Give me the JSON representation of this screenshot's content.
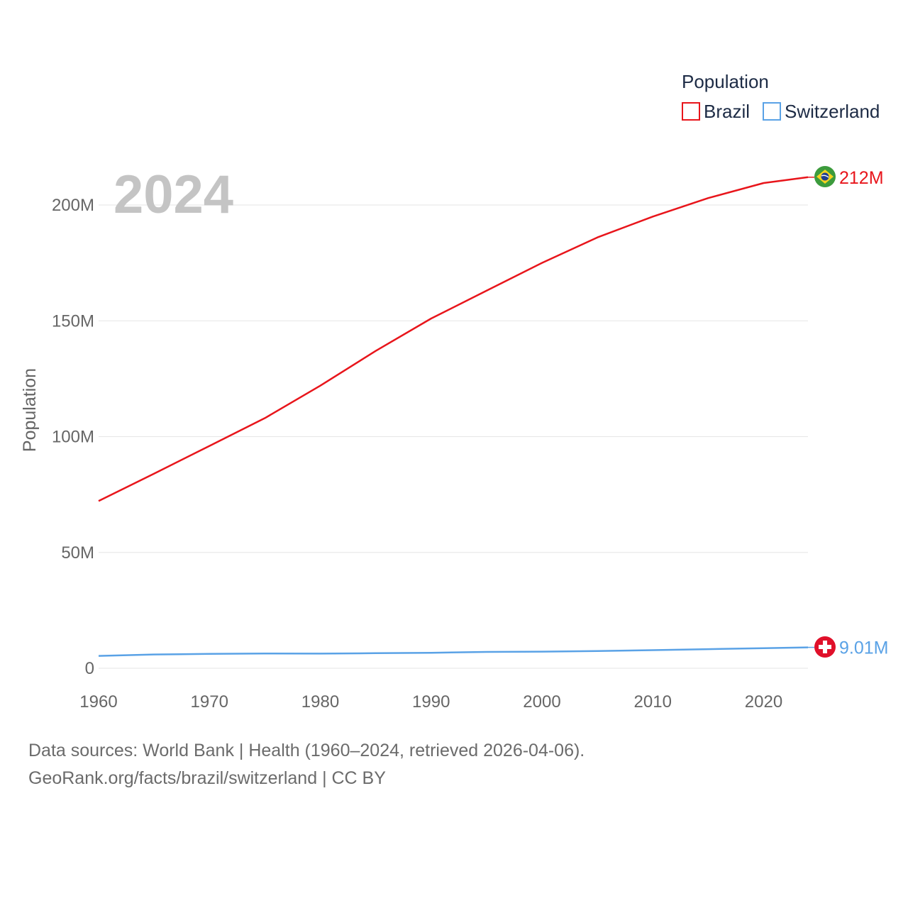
{
  "chart_data": {
    "type": "line",
    "title": "Population",
    "ylabel": "Population",
    "xlabel": "",
    "year_label": "2024",
    "xlim": [
      1960,
      2024
    ],
    "ylim": [
      0,
      200000000
    ],
    "x_ticks": [
      1960,
      1970,
      1980,
      1990,
      2000,
      2010,
      2020
    ],
    "y_ticks": [
      {
        "value": 0,
        "label": "0"
      },
      {
        "value": 50000000,
        "label": "50M"
      },
      {
        "value": 100000000,
        "label": "100M"
      },
      {
        "value": 150000000,
        "label": "150M"
      },
      {
        "value": 200000000,
        "label": "200M"
      }
    ],
    "legend": {
      "title": "Population",
      "position": "top-right"
    },
    "x": [
      1960,
      1965,
      1970,
      1975,
      1980,
      1985,
      1990,
      1995,
      2000,
      2005,
      2010,
      2015,
      2020,
      2024
    ],
    "series": [
      {
        "name": "Brazil",
        "color": "#e8151b",
        "end_label": "212M",
        "flag_icon": "brazil-flag-icon",
        "values": [
          72200000,
          84000000,
          96000000,
          108000000,
          122000000,
          137000000,
          151000000,
          163000000,
          175000000,
          186000000,
          195000000,
          203000000,
          209500000,
          212000000
        ]
      },
      {
        "name": "Switzerland",
        "color": "#5aa2e6",
        "end_label": "9.01M",
        "flag_icon": "switzerland-flag-icon",
        "values": [
          5330000,
          5940000,
          6180000,
          6340000,
          6320000,
          6480000,
          6670000,
          7040000,
          7180000,
          7420000,
          7820000,
          8240000,
          8640000,
          9010000
        ]
      }
    ]
  },
  "footer": {
    "line1": "Data sources: World Bank | Health (1960–2024, retrieved 2026-04-06).",
    "line2": "GeoRank.org/facts/brazil/switzerland | CC BY"
  }
}
